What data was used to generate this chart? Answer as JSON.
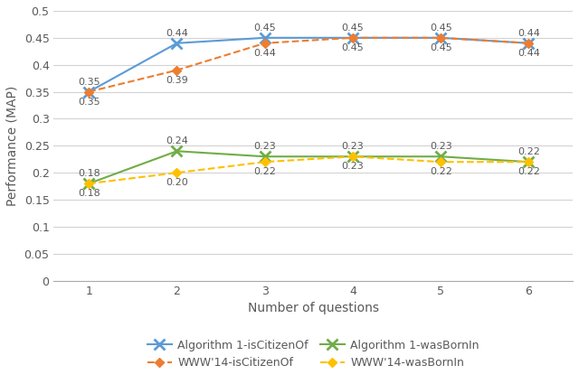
{
  "x": [
    1,
    2,
    3,
    4,
    5,
    6
  ],
  "series_order": [
    "alg1_citizen",
    "www_citizen",
    "alg1_born",
    "www_born"
  ],
  "series": {
    "alg1_citizen": {
      "values": [
        0.35,
        0.44,
        0.45,
        0.45,
        0.45,
        0.44
      ],
      "label": "Algorithm 1-isCitizenOf",
      "color": "#5B9BD5",
      "linestyle": "-",
      "marker": "x",
      "markersize": 8,
      "markeredgewidth": 2,
      "linewidth": 1.5,
      "annot_above": true
    },
    "www_citizen": {
      "values": [
        0.35,
        0.39,
        0.44,
        0.45,
        0.45,
        0.44
      ],
      "label": "WWW'14-isCitizenOf",
      "color": "#ED7D31",
      "linestyle": "--",
      "marker": "D",
      "markersize": 5,
      "markeredgewidth": 1,
      "linewidth": 1.5,
      "annot_above": false
    },
    "alg1_born": {
      "values": [
        0.18,
        0.24,
        0.23,
        0.23,
        0.23,
        0.22
      ],
      "label": "Algorithm 1-wasBornIn",
      "color": "#70AD47",
      "linestyle": "-",
      "marker": "x",
      "markersize": 8,
      "markeredgewidth": 2,
      "linewidth": 1.5,
      "annot_above": true
    },
    "www_born": {
      "values": [
        0.18,
        0.2,
        0.22,
        0.23,
        0.22,
        0.22
      ],
      "label": "WWW'14-wasBornIn",
      "color": "#FFC000",
      "linestyle": "--",
      "marker": "D",
      "markersize": 5,
      "markeredgewidth": 1,
      "linewidth": 1.5,
      "annot_above": false
    }
  },
  "xlabel": "Number of questions",
  "ylabel": "Performance (MAP)",
  "ylim": [
    0,
    0.5
  ],
  "yticks": [
    0,
    0.05,
    0.1,
    0.15,
    0.2,
    0.25,
    0.3,
    0.35,
    0.4,
    0.45,
    0.5
  ],
  "xticks": [
    1,
    2,
    3,
    4,
    5,
    6
  ],
  "background_color": "#FFFFFF",
  "grid_color": "#D3D3D3",
  "annotation_fontsize": 8,
  "label_fontsize": 10,
  "tick_fontsize": 9,
  "legend_fontsize": 9,
  "legend_order": [
    "alg1_citizen",
    "www_citizen",
    "alg1_born",
    "www_born"
  ]
}
